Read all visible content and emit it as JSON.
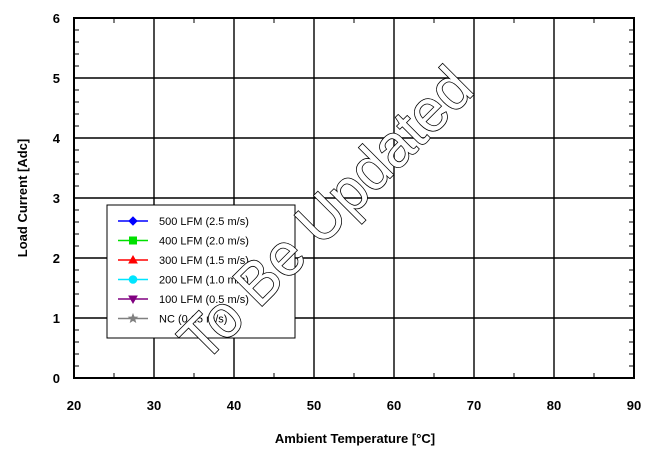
{
  "chart_data": {
    "type": "line",
    "xlabel": "Ambient Temperature [°C]",
    "ylabel": "Load Current  [Adc]",
    "xlim": [
      20,
      90
    ],
    "ylim": [
      0,
      6
    ],
    "x_ticks": [
      "20",
      "30",
      "40",
      "50",
      "60",
      "70",
      "80",
      "90"
    ],
    "y_ticks": [
      "0",
      "1",
      "2",
      "3",
      "4",
      "5",
      "6"
    ],
    "grid": true,
    "legend_position": "lower-left",
    "series": [
      {
        "name": "500 LFM (2.5 m/s)",
        "color": "#0000ff",
        "marker": "diamond",
        "values": []
      },
      {
        "name": "400 LFM (2.0 m/s)",
        "color": "#00e000",
        "marker": "square",
        "values": []
      },
      {
        "name": "300 LFM (1.5 m/s)",
        "color": "#ff0000",
        "marker": "triangle",
        "values": []
      },
      {
        "name": "200 LFM (1.0 m/s)",
        "color": "#00e5ff",
        "marker": "circle",
        "values": []
      },
      {
        "name": "100 LFM (0.5 m/s)",
        "color": "#800080",
        "marker": "triangle-down",
        "values": []
      },
      {
        "name": "NC (0.15 m/s)",
        "color": "#808080",
        "marker": "star",
        "values": []
      }
    ],
    "watermark": "To Be Updated"
  }
}
